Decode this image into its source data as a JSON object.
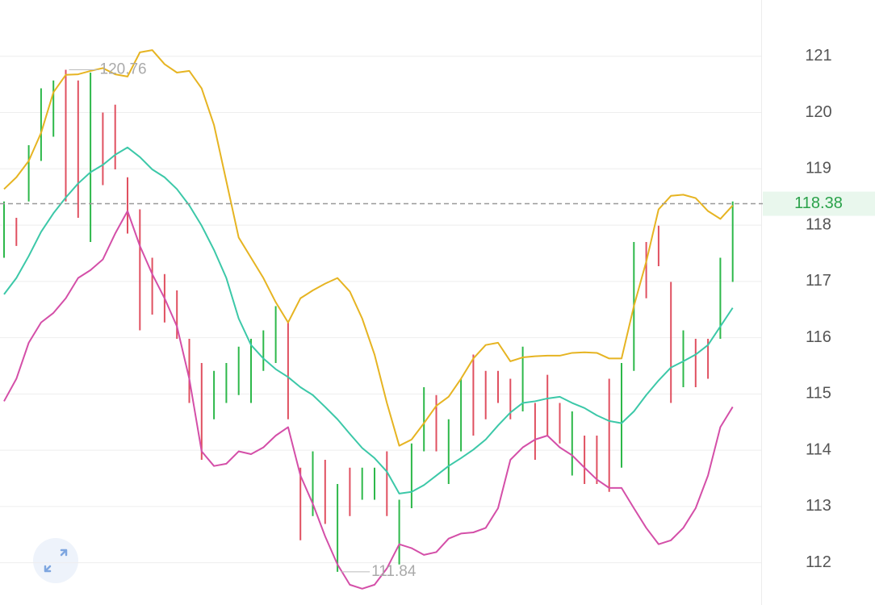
{
  "chart_data": {
    "type": "ohlc-bars",
    "ylim": [
      111.25,
      122.0
    ],
    "yticks": [
      112,
      113,
      114,
      115,
      116,
      117,
      118,
      119,
      120,
      121
    ],
    "grid": true,
    "up_color": "#2db84a",
    "down_color": "#e05060",
    "highs": [
      118.42,
      118.13,
      119.42,
      120.43,
      120.57,
      120.76,
      120.57,
      120.71,
      120.0,
      120.14,
      118.85,
      118.28,
      117.42,
      117.13,
      116.84,
      115.98,
      115.55,
      115.41,
      115.55,
      115.84,
      115.98,
      116.13,
      116.56,
      116.27,
      113.69,
      113.98,
      113.83,
      113.4,
      113.69,
      113.69,
      113.69,
      113.98,
      113.12,
      114.12,
      115.12,
      114.98,
      114.55,
      115.27,
      115.7,
      115.41,
      115.41,
      115.27,
      115.84,
      114.84,
      115.34,
      114.84,
      114.69,
      114.26,
      114.26,
      115.27,
      115.55,
      117.7,
      117.7,
      117.99,
      116.99,
      116.13,
      115.98,
      115.98,
      117.42,
      118.42
    ],
    "lows": [
      117.42,
      117.63,
      118.42,
      119.14,
      119.57,
      118.42,
      118.13,
      117.7,
      118.71,
      118.99,
      117.85,
      116.13,
      116.41,
      116.27,
      115.98,
      114.84,
      113.83,
      114.55,
      114.84,
      114.98,
      114.84,
      115.41,
      115.55,
      114.55,
      112.4,
      112.83,
      112.69,
      111.84,
      112.83,
      113.12,
      113.12,
      112.83,
      111.97,
      112.97,
      113.98,
      113.98,
      113.4,
      113.98,
      114.26,
      114.55,
      114.84,
      114.55,
      114.69,
      113.83,
      114.26,
      114.12,
      113.55,
      113.4,
      113.4,
      113.26,
      113.69,
      115.41,
      116.7,
      117.27,
      114.84,
      115.12,
      115.12,
      115.27,
      115.98,
      116.99
    ],
    "up": [
      true,
      false,
      true,
      true,
      true,
      false,
      false,
      true,
      false,
      false,
      false,
      false,
      false,
      false,
      false,
      false,
      false,
      true,
      true,
      true,
      true,
      true,
      true,
      false,
      false,
      true,
      false,
      true,
      false,
      true,
      true,
      false,
      true,
      true,
      true,
      false,
      true,
      true,
      false,
      false,
      false,
      false,
      true,
      false,
      false,
      false,
      true,
      false,
      false,
      false,
      true,
      true,
      false,
      false,
      false,
      true,
      false,
      false,
      true,
      true
    ],
    "lines": [
      {
        "color": "#e6b422",
        "values": [
          118.64,
          118.85,
          119.14,
          119.64,
          120.36,
          120.67,
          120.68,
          120.74,
          120.79,
          120.68,
          120.64,
          121.07,
          121.11,
          120.86,
          120.71,
          120.74,
          120.43,
          119.78,
          118.78,
          117.78,
          117.42,
          117.06,
          116.63,
          116.27,
          116.7,
          116.84,
          116.96,
          117.06,
          116.82,
          116.34,
          115.7,
          114.84,
          114.08,
          114.19,
          114.48,
          114.79,
          114.95,
          115.27,
          115.63,
          115.87,
          115.91,
          115.58,
          115.65,
          115.67,
          115.68,
          115.68,
          115.73,
          115.74,
          115.73,
          115.63,
          115.63,
          116.56,
          117.35,
          118.28,
          118.52,
          118.54,
          118.48,
          118.25,
          118.11,
          118.35
        ]
      },
      {
        "color": "#3cc8a8",
        "values": [
          116.77,
          117.06,
          117.45,
          117.88,
          118.21,
          118.49,
          118.74,
          118.94,
          119.07,
          119.25,
          119.38,
          119.21,
          118.99,
          118.85,
          118.64,
          118.35,
          117.99,
          117.56,
          117.06,
          116.34,
          115.87,
          115.63,
          115.44,
          115.3,
          115.12,
          114.98,
          114.77,
          114.55,
          114.29,
          114.04,
          113.86,
          113.62,
          113.23,
          113.26,
          113.38,
          113.55,
          113.72,
          113.86,
          114.01,
          114.19,
          114.44,
          114.67,
          114.84,
          114.87,
          114.92,
          114.95,
          114.84,
          114.75,
          114.62,
          114.52,
          114.48,
          114.69,
          114.98,
          115.24,
          115.47,
          115.58,
          115.7,
          115.87,
          116.2,
          116.53
        ]
      },
      {
        "color": "#d44fa8",
        "values": [
          114.87,
          115.27,
          115.91,
          116.27,
          116.44,
          116.7,
          117.06,
          117.2,
          117.39,
          117.85,
          118.25,
          117.63,
          117.13,
          116.7,
          116.2,
          115.27,
          113.98,
          113.72,
          113.76,
          113.98,
          113.93,
          114.05,
          114.26,
          114.41,
          113.55,
          113.05,
          112.47,
          111.97,
          111.61,
          111.54,
          111.61,
          111.9,
          112.33,
          112.26,
          112.14,
          112.19,
          112.43,
          112.52,
          112.54,
          112.62,
          112.97,
          113.83,
          114.05,
          114.19,
          114.26,
          114.05,
          113.91,
          113.69,
          113.48,
          113.33,
          113.33,
          112.97,
          112.62,
          112.33,
          112.4,
          112.62,
          112.97,
          113.55,
          114.41,
          114.77
        ]
      }
    ],
    "last_price": 118.38,
    "last_price_color": "#2aa24a",
    "max_label": 120.76,
    "min_label": 111.84
  }
}
